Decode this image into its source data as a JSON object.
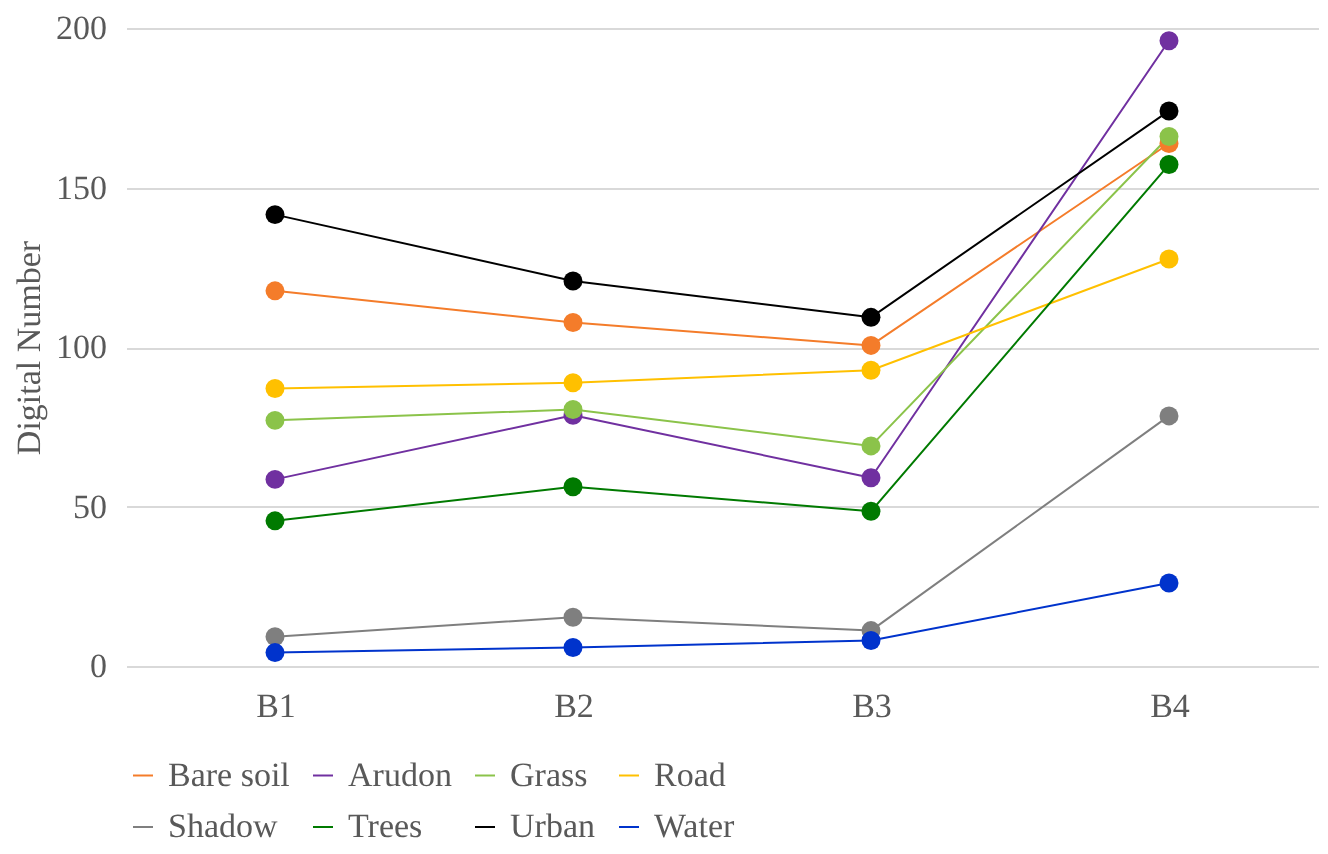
{
  "chart_data": {
    "type": "line",
    "ylabel": "Digital Number",
    "categories": [
      "B1",
      "B2",
      "B3",
      "B4"
    ],
    "series": [
      {
        "name": "Bare soil",
        "color": "#f47c2a",
        "values": [
          117.6,
          107.7,
          100.5,
          163.8
        ]
      },
      {
        "name": "Arudon",
        "color": "#7030a0",
        "values": [
          58.5,
          78.6,
          59,
          196
        ]
      },
      {
        "name": "Grass",
        "color": "#8bc34a",
        "values": [
          77,
          80.4,
          69,
          166
        ]
      },
      {
        "name": "Road",
        "color": "#ffc000",
        "values": [
          87,
          88.8,
          92.7,
          127.6
        ]
      },
      {
        "name": "Shadow",
        "color": "#7f7f7f",
        "values": [
          9.2,
          15.3,
          11.1,
          78.4
        ]
      },
      {
        "name": "Trees",
        "color": "#007a00",
        "values": [
          45.5,
          56.2,
          48.5,
          157.2
        ]
      },
      {
        "name": "Urban",
        "color": "#000000",
        "values": [
          141.5,
          120.7,
          109.3,
          174
        ]
      },
      {
        "name": "Water",
        "color": "#0033cc",
        "values": [
          4.2,
          5.8,
          8,
          26
        ]
      }
    ],
    "ylim": [
      0,
      200
    ],
    "yticks": [
      0,
      50,
      100,
      150,
      200
    ],
    "grid": "y",
    "legend": "bottom",
    "marker": "circle",
    "line_style": "solid"
  }
}
